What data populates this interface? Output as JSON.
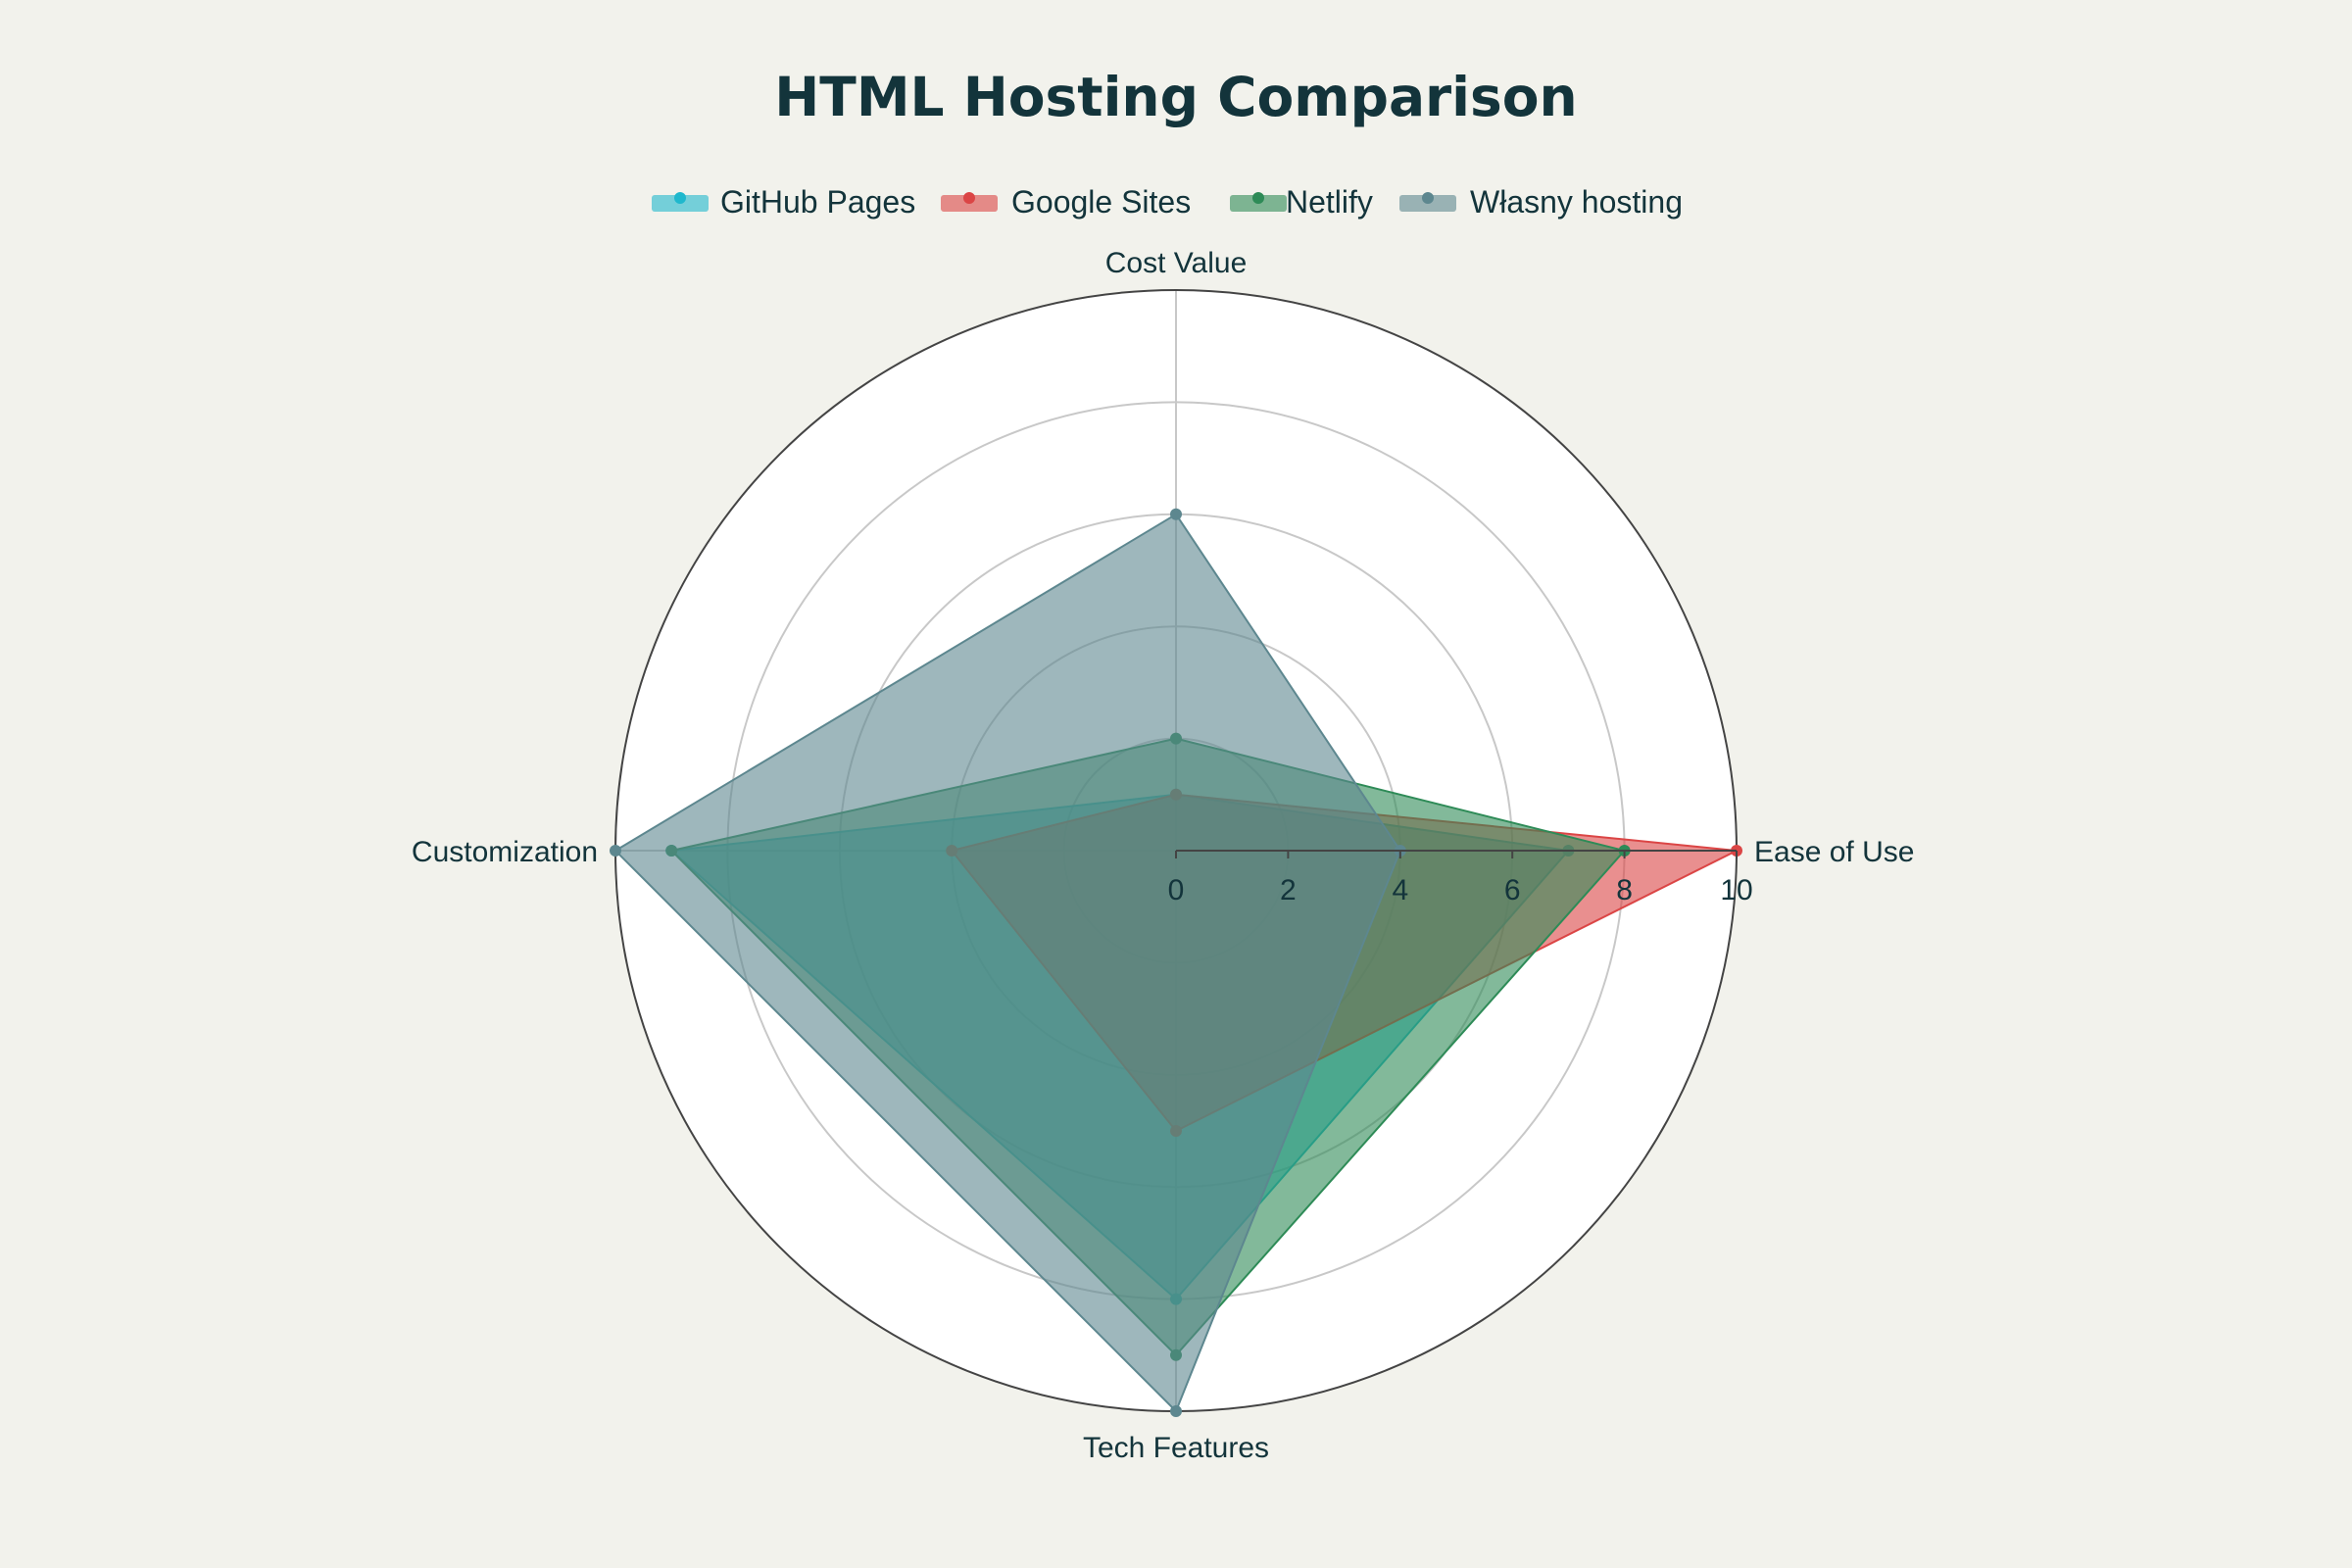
{
  "chart_data": {
    "type": "radar",
    "title": "HTML Hosting Comparison",
    "axes": [
      "Cost Value",
      "Ease of Use",
      "Tech Features",
      "Customization"
    ],
    "radial_range": [
      0,
      10
    ],
    "radial_ticks": [
      "0",
      "2",
      "4",
      "6",
      "8",
      "10"
    ],
    "legend_position": "top-center",
    "series": [
      {
        "name": "GitHub Pages",
        "color": "#1fb8cd",
        "values": [
          1,
          7,
          8,
          9
        ]
      },
      {
        "name": "Google Sites",
        "color": "#db4545",
        "values": [
          1,
          10,
          5,
          4
        ]
      },
      {
        "name": "Netlify",
        "color": "#2e8b57",
        "values": [
          2,
          8,
          9,
          9
        ]
      },
      {
        "name": "Własny hosting",
        "color": "#5d878f",
        "values": [
          6,
          4,
          10,
          10
        ]
      }
    ]
  }
}
